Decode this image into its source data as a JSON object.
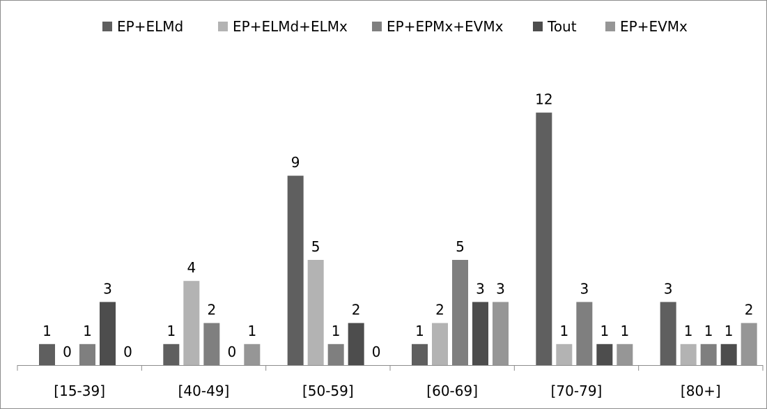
{
  "chart_data": {
    "type": "bar",
    "categories": [
      "[15-39]",
      "[40-49]",
      "[50-59]",
      "[60-69]",
      "[70-79]",
      "[80+]"
    ],
    "series": [
      {
        "name": "EP+ELMd",
        "color": "#5f5f5f",
        "values": [
          1,
          1,
          9,
          1,
          12,
          3
        ]
      },
      {
        "name": "EP+ELMd+ELMx",
        "color": "#b3b3b3",
        "values": [
          0,
          4,
          5,
          2,
          1,
          1
        ]
      },
      {
        "name": "EP+EPMx+EVMx",
        "color": "#7f7f7f",
        "values": [
          1,
          2,
          1,
          5,
          3,
          1
        ]
      },
      {
        "name": "Tout",
        "color": "#4d4d4d",
        "values": [
          3,
          0,
          2,
          3,
          1,
          1
        ]
      },
      {
        "name": "EP+EVMx",
        "color": "#969696",
        "values": [
          0,
          1,
          0,
          3,
          1,
          2
        ]
      }
    ],
    "title": "",
    "xlabel": "",
    "ylabel": "",
    "ylim": [
      0,
      13
    ],
    "grid": false,
    "legend_position": "top",
    "data_labels": true
  }
}
